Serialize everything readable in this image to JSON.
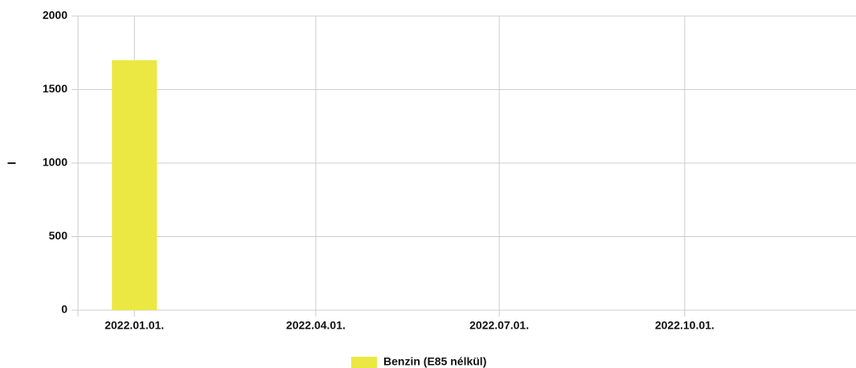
{
  "chart_data": {
    "type": "bar",
    "x": [
      "2022.01.01."
    ],
    "series": [
      {
        "name": "Benzin (E85 nélkül)",
        "color": "#ebe843",
        "values": [
          1700
        ]
      }
    ],
    "xlim": [
      "2021.12.04.",
      "2022.12.25."
    ],
    "xticks": [
      "2022.01.01.",
      "2022.04.01.",
      "2022.07.01.",
      "2022.10.01."
    ],
    "ylabel": "l",
    "ylim": [
      0,
      2000
    ],
    "yticks": [
      0,
      500,
      1000,
      1500,
      2000
    ],
    "grid": true,
    "legend": "bottom"
  }
}
